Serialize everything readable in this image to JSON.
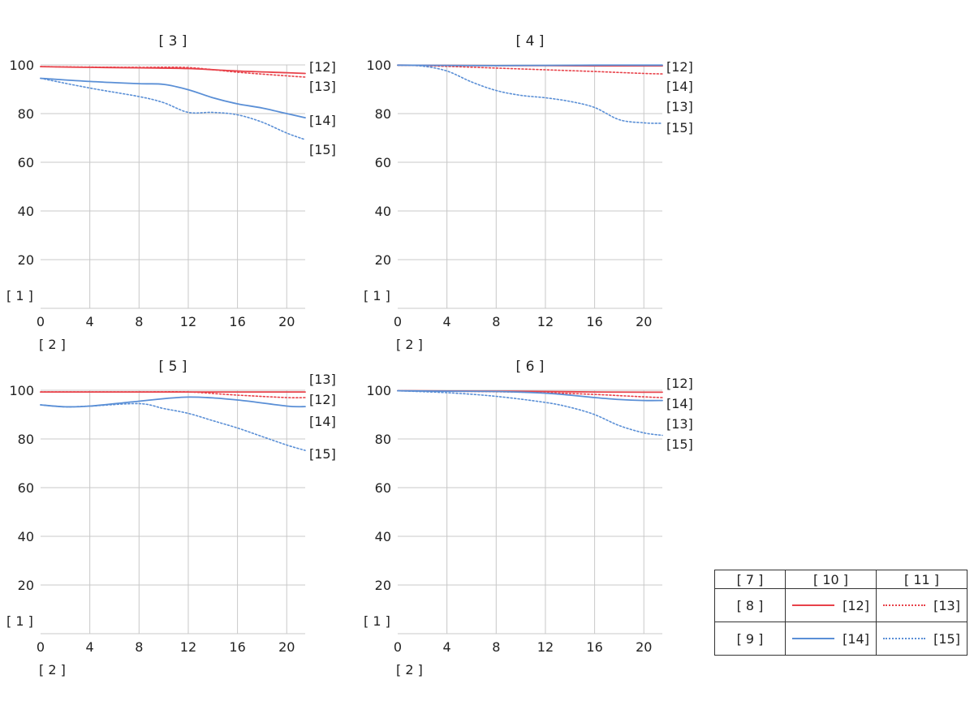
{
  "colors": {
    "red": "#e8424a",
    "blue": "#5a8fd6",
    "grid": "#c8c8c8"
  },
  "chart_data": [
    {
      "type": "line",
      "title": "[ 3 ]",
      "ylabel": "[ 1 ]",
      "xlabel": "[ 2 ]",
      "xlim": [
        0,
        21.5
      ],
      "ylim": [
        0,
        100
      ],
      "xticks": [
        0,
        4,
        8,
        12,
        16,
        20
      ],
      "yticks": [
        20,
        40,
        60,
        80,
        100
      ],
      "grid": true,
      "series": [
        {
          "name": "[12]",
          "color": "red",
          "style": "solid",
          "x": [
            0,
            4,
            8,
            12,
            16,
            20,
            21.5
          ],
          "y": [
            99.3,
            99.0,
            98.8,
            98.5,
            97.5,
            96.8,
            96.5
          ]
        },
        {
          "name": "[13]",
          "color": "red",
          "style": "dotted",
          "x": [
            0,
            4,
            8,
            12,
            16,
            20,
            21.5
          ],
          "y": [
            99.3,
            99.1,
            99.0,
            98.9,
            97.0,
            95.5,
            95.0
          ]
        },
        {
          "name": "[14]",
          "color": "blue",
          "style": "solid",
          "x": [
            0,
            4,
            8,
            10,
            12,
            14,
            16,
            18,
            20,
            21.5
          ],
          "y": [
            94.5,
            93.2,
            92.3,
            92.0,
            89.8,
            86.5,
            84.0,
            82.3,
            80.0,
            78.3
          ]
        },
        {
          "name": "[15]",
          "color": "blue",
          "style": "dotted",
          "x": [
            0,
            4,
            8,
            10,
            12,
            14,
            16,
            18,
            20,
            21.5
          ],
          "y": [
            94.5,
            90.5,
            87.0,
            84.5,
            80.5,
            80.5,
            79.5,
            76.5,
            72.0,
            69.3
          ]
        }
      ],
      "end_labels": [
        "[12]",
        "[13]",
        "[14]",
        "[15]"
      ]
    },
    {
      "type": "line",
      "title": "[ 4 ]",
      "ylabel": "[ 1 ]",
      "xlabel": "[ 2 ]",
      "xlim": [
        0,
        21.5
      ],
      "ylim": [
        0,
        100
      ],
      "xticks": [
        0,
        4,
        8,
        12,
        16,
        20
      ],
      "yticks": [
        20,
        40,
        60,
        80,
        100
      ],
      "grid": true,
      "series": [
        {
          "name": "[12]",
          "color": "red",
          "style": "solid",
          "x": [
            0,
            4,
            8,
            12,
            16,
            20,
            21.5
          ],
          "y": [
            99.9,
            99.8,
            99.7,
            99.7,
            99.6,
            99.6,
            99.6
          ]
        },
        {
          "name": "[13]",
          "color": "red",
          "style": "dotted",
          "x": [
            0,
            4,
            8,
            12,
            16,
            20,
            21.5
          ],
          "y": [
            99.9,
            99.4,
            98.7,
            98.0,
            97.3,
            96.5,
            96.3
          ]
        },
        {
          "name": "[14]",
          "color": "blue",
          "style": "solid",
          "x": [
            0,
            4,
            8,
            12,
            16,
            20,
            21.5
          ],
          "y": [
            99.9,
            99.8,
            99.7,
            99.8,
            99.9,
            99.9,
            99.9
          ]
        },
        {
          "name": "[15]",
          "color": "blue",
          "style": "dotted",
          "x": [
            0,
            2,
            4,
            6,
            8,
            10,
            12,
            14,
            16,
            18,
            20,
            21.5
          ],
          "y": [
            99.9,
            99.5,
            97.5,
            93.0,
            89.5,
            87.5,
            86.5,
            85.0,
            82.5,
            77.5,
            76.2,
            76.0
          ]
        }
      ],
      "end_labels": [
        "[12]",
        "[14]",
        "[13]",
        "[15]"
      ]
    },
    {
      "type": "line",
      "title": "[ 5 ]",
      "ylabel": "[ 1 ]",
      "xlabel": "[ 2 ]",
      "xlim": [
        0,
        21.5
      ],
      "ylim": [
        0,
        100
      ],
      "xticks": [
        0,
        4,
        8,
        12,
        16,
        20
      ],
      "yticks": [
        20,
        40,
        60,
        80,
        100
      ],
      "grid": true,
      "series": [
        {
          "name": "[12]",
          "color": "red",
          "style": "solid",
          "x": [
            0,
            4,
            8,
            12,
            16,
            20,
            21.5
          ],
          "y": [
            99.3,
            99.3,
            99.3,
            99.3,
            99.3,
            99.3,
            99.3
          ]
        },
        {
          "name": "[13]",
          "color": "red",
          "style": "dotted",
          "x": [
            0,
            4,
            8,
            12,
            16,
            20,
            21.5
          ],
          "y": [
            99.3,
            99.3,
            99.3,
            99.3,
            98.0,
            97.0,
            97.0
          ]
        },
        {
          "name": "[14]",
          "color": "blue",
          "style": "solid",
          "x": [
            0,
            2,
            4,
            8,
            12,
            16,
            20,
            21.5
          ],
          "y": [
            94.0,
            93.2,
            93.5,
            95.5,
            97.2,
            96.0,
            93.5,
            93.3
          ]
        },
        {
          "name": "[15]",
          "color": "blue",
          "style": "dotted",
          "x": [
            0,
            2,
            4,
            8,
            10,
            12,
            14,
            16,
            18,
            20,
            21.5
          ],
          "y": [
            94.0,
            93.2,
            93.5,
            94.5,
            92.5,
            90.5,
            87.5,
            84.5,
            81.0,
            77.5,
            75.3
          ]
        }
      ],
      "end_labels": [
        "[13]",
        "[12]",
        "[14]",
        "[15]"
      ]
    },
    {
      "type": "line",
      "title": "[ 6 ]",
      "ylabel": "[ 1 ]",
      "xlabel": "[ 2 ]",
      "xlim": [
        0,
        21.5
      ],
      "ylim": [
        0,
        100
      ],
      "xticks": [
        0,
        4,
        8,
        12,
        16,
        20
      ],
      "yticks": [
        20,
        40,
        60,
        80,
        100
      ],
      "grid": true,
      "series": [
        {
          "name": "[12]",
          "color": "red",
          "style": "solid",
          "x": [
            0,
            4,
            8,
            12,
            16,
            20,
            21.5
          ],
          "y": [
            99.8,
            99.7,
            99.6,
            99.5,
            99.3,
            99.2,
            99.2
          ]
        },
        {
          "name": "[13]",
          "color": "red",
          "style": "dotted",
          "x": [
            0,
            4,
            8,
            12,
            16,
            20,
            21.5
          ],
          "y": [
            99.8,
            99.6,
            99.4,
            99.0,
            98.3,
            97.3,
            97.0
          ]
        },
        {
          "name": "[14]",
          "color": "blue",
          "style": "solid",
          "x": [
            0,
            4,
            8,
            12,
            14,
            16,
            18,
            20,
            21.5
          ],
          "y": [
            99.8,
            99.6,
            99.5,
            98.8,
            98.0,
            97.0,
            96.2,
            95.8,
            95.8
          ]
        },
        {
          "name": "[15]",
          "color": "blue",
          "style": "dotted",
          "x": [
            0,
            4,
            8,
            12,
            14,
            16,
            18,
            20,
            21.5
          ],
          "y": [
            99.8,
            99.0,
            97.5,
            95.0,
            93.0,
            90.0,
            85.5,
            82.5,
            81.5
          ]
        }
      ],
      "end_labels": [
        "[12]",
        "[14]",
        "[13]",
        "[15]"
      ]
    }
  ],
  "legend": {
    "header": [
      "[ 7 ]",
      "[ 10 ]",
      "[ 11 ]"
    ],
    "rows": [
      {
        "label": "[ 8 ]",
        "solid_label": "[12]",
        "dotted_label": "[13]",
        "color": "red"
      },
      {
        "label": "[ 9 ]",
        "solid_label": "[14]",
        "dotted_label": "[15]",
        "color": "blue"
      }
    ]
  }
}
